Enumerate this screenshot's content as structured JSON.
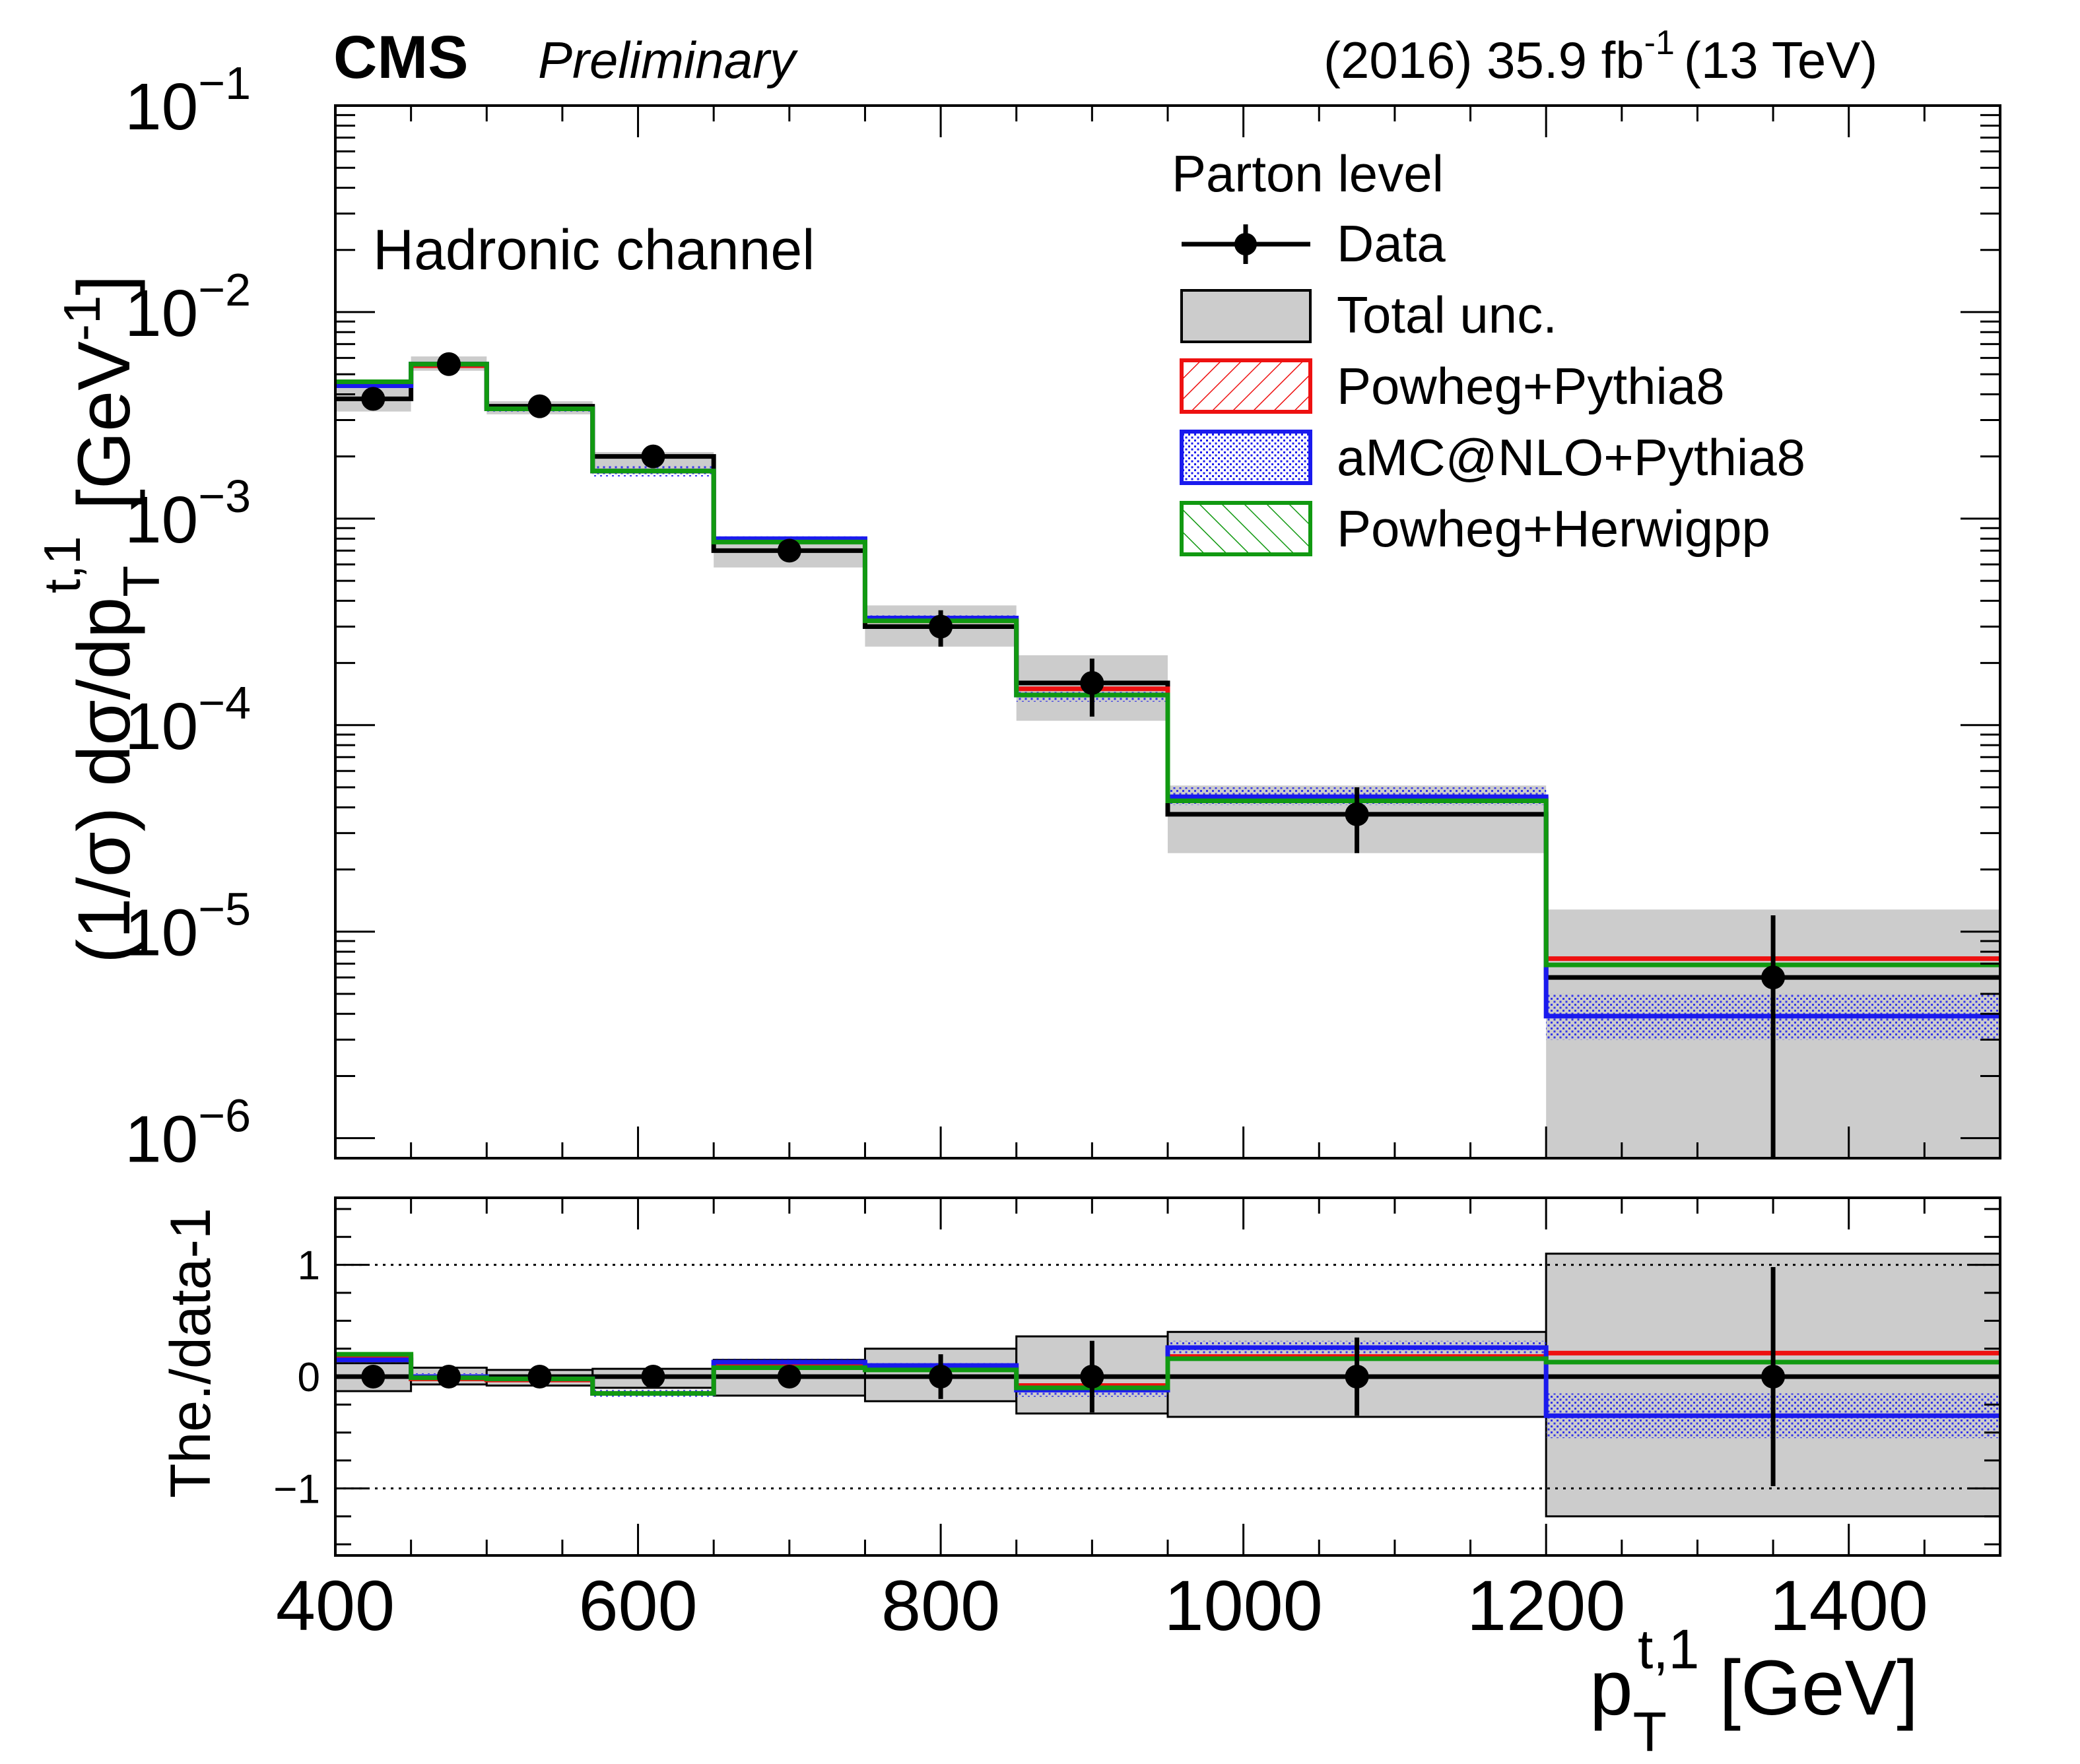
{
  "header": {
    "experiment": "CMS",
    "status": "Preliminary",
    "lumi_year": "(2016) 35.9 fb",
    "lumi_exp": "-1",
    "energy": "(13 TeV)"
  },
  "chart_data": [
    {
      "panel": "main",
      "type": "line",
      "channel_label": "Hadronic channel",
      "legend_title": "Parton level",
      "ylabel_main": "(1/σ) dσ/dp",
      "ylabel_sub": "T",
      "ylabel_sup": "t,1",
      "ylabel_unit": "[GeV",
      "ylabel_unit_sup": "-1",
      "ylabel_close": "]",
      "yscale": "log",
      "ylim": [
        8e-07,
        0.1
      ],
      "yticks": [
        {
          "mantissa": "10",
          "exp": "−1",
          "value": 0.1
        },
        {
          "mantissa": "10",
          "exp": "−2",
          "value": 0.01
        },
        {
          "mantissa": "10",
          "exp": "−3",
          "value": 0.001
        },
        {
          "mantissa": "10",
          "exp": "−4",
          "value": 0.0001
        },
        {
          "mantissa": "10",
          "exp": "−5",
          "value": 1e-05
        },
        {
          "mantissa": "10",
          "exp": "−6",
          "value": 1e-06
        }
      ],
      "bin_edges": [
        400,
        450,
        500,
        570,
        650,
        750,
        850,
        950,
        1200,
        1500
      ],
      "data": {
        "x": [
          425,
          475,
          535,
          610,
          700,
          800,
          900,
          1075,
          1350
        ],
        "y": [
          0.0038,
          0.0056,
          0.0035,
          0.002,
          0.0007,
          0.0003,
          0.00016,
          3.7e-05,
          6e-06
        ],
        "err_lo": [
          0.0003,
          0.0004,
          0.0002,
          0.00015,
          5e-05,
          6e-05,
          5e-05,
          1.3e-05,
          5.2e-06
        ],
        "err_hi": [
          0.0003,
          0.0004,
          0.0002,
          0.00015,
          5e-05,
          6e-05,
          5e-05,
          1.3e-05,
          6e-06
        ]
      },
      "total_unc": {
        "lo": [
          0.0033,
          0.0052,
          0.0032,
          0.0017,
          0.00058,
          0.00024,
          0.000105,
          2.4e-05,
          8e-07
        ],
        "hi": [
          0.0044,
          0.0061,
          0.0037,
          0.0021,
          0.00081,
          0.00038,
          0.000218,
          5.1e-05,
          1.28e-05
        ]
      },
      "series": [
        {
          "name": "Powheg+Pythia8",
          "color": "#ee1111",
          "values": [
            0.0045,
            0.0055,
            0.0034,
            0.0017,
            0.00078,
            0.00032,
            0.00015,
            4.4e-05,
            7.4e-06
          ]
        },
        {
          "name": "aMC@NLO+Pythia8",
          "color": "#1a1aee",
          "values": [
            0.0044,
            0.0056,
            0.0034,
            0.0017,
            0.0008,
            0.00033,
            0.00014,
            4.5e-05,
            3.9e-06
          ],
          "band_lo": [
            0.0043,
            0.0055,
            0.0033,
            0.0016,
            0.00077,
            0.00032,
            0.00013,
            4.1e-05,
            3e-06
          ],
          "band_hi": [
            0.0045,
            0.0057,
            0.0035,
            0.0018,
            0.00082,
            0.00034,
            0.00015,
            5e-05,
            5e-06
          ]
        },
        {
          "name": "Powheg+Herwigpp",
          "color": "#119911",
          "values": [
            0.0046,
            0.0056,
            0.0034,
            0.0017,
            0.00077,
            0.00032,
            0.00014,
            4.3e-05,
            6.9e-06
          ]
        }
      ],
      "legend": [
        "Data",
        "Total unc.",
        "Powheg+Pythia8",
        "aMC@NLO+Pythia8",
        "Powheg+Herwigpp"
      ]
    },
    {
      "panel": "ratio",
      "type": "line",
      "ylabel": "The./data-1",
      "xlabel_main": "p",
      "xlabel_sub": "T",
      "xlabel_sup": "t,1",
      "xlabel_unit": "[GeV]",
      "ylim": [
        -1.6,
        1.6
      ],
      "xlim": [
        400,
        1500
      ],
      "yticks": [
        {
          "label": "1",
          "value": 1
        },
        {
          "label": "0",
          "value": 0
        },
        {
          "label": "−1",
          "value": -1
        }
      ],
      "xticks": [
        {
          "label": "400",
          "value": 400
        },
        {
          "label": "600",
          "value": 600
        },
        {
          "label": "800",
          "value": 800
        },
        {
          "label": "1000",
          "value": 1000
        },
        {
          "label": "1200",
          "value": 1200
        },
        {
          "label": "1400",
          "value": 1400
        }
      ],
      "reference_lines": [
        1,
        -1
      ],
      "data_err": [
        0.08,
        0.07,
        0.06,
        0.08,
        0.07,
        0.2,
        0.32,
        0.35,
        0.98
      ],
      "total_unc": {
        "lo": [
          -0.13,
          -0.07,
          -0.08,
          -0.1,
          -0.17,
          -0.22,
          -0.33,
          -0.36,
          -1.25
        ],
        "hi": [
          0.12,
          0.08,
          0.06,
          0.07,
          0.15,
          0.25,
          0.36,
          0.4,
          1.1
        ]
      },
      "series": [
        {
          "name": "Powheg+Pythia8",
          "values": [
            0.18,
            -0.02,
            -0.03,
            -0.15,
            0.1,
            0.07,
            -0.08,
            0.18,
            0.21
          ]
        },
        {
          "name": "aMC@NLO+Pythia8",
          "values": [
            0.15,
            0.0,
            -0.02,
            -0.15,
            0.13,
            0.1,
            -0.12,
            0.26,
            -0.35
          ],
          "band_lo": [
            0.12,
            -0.03,
            -0.05,
            -0.18,
            0.1,
            0.07,
            -0.18,
            0.2,
            -0.55
          ],
          "band_hi": [
            0.18,
            0.03,
            0.01,
            -0.12,
            0.16,
            0.13,
            -0.06,
            0.32,
            -0.15
          ]
        },
        {
          "name": "Powheg+Herwigpp",
          "values": [
            0.2,
            -0.01,
            -0.02,
            -0.15,
            0.08,
            0.06,
            -0.1,
            0.16,
            0.13
          ]
        }
      ]
    }
  ]
}
